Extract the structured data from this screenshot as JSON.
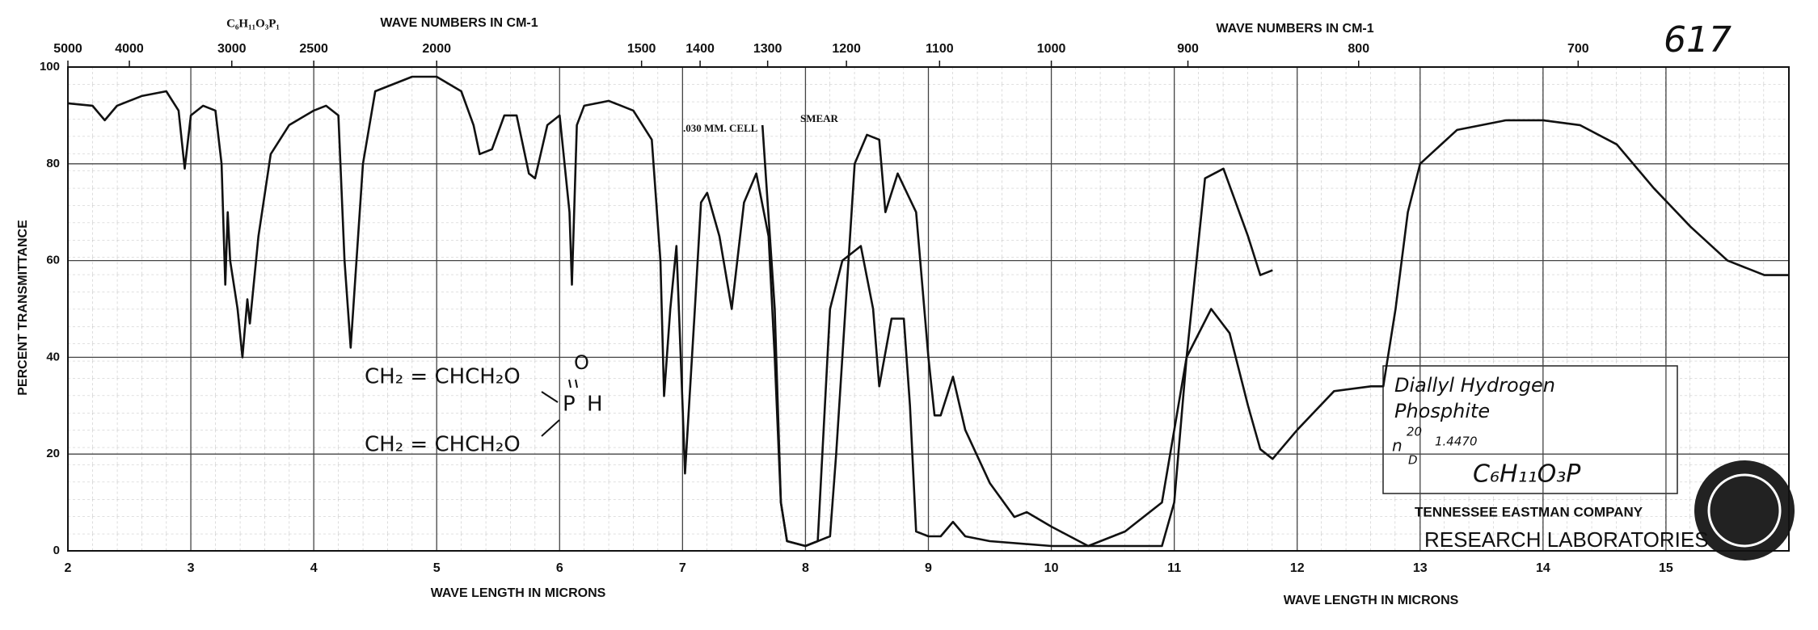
{
  "chart_data": {
    "type": "line",
    "x_label": "WAVE LENGTH IN MICRONS",
    "x2_label": "WAVE NUMBERS IN CM-1",
    "y_label": "PERCENT TRANSMITTANCE",
    "xlim": [
      2,
      16
    ],
    "xticks": [
      2,
      3,
      4,
      5,
      6,
      7,
      8,
      9,
      10,
      11,
      12,
      13,
      14,
      15
    ],
    "x2ticks": [
      5000,
      4000,
      3000,
      2500,
      2000,
      1500,
      1400,
      1300,
      1200,
      1100,
      1000,
      900,
      800,
      700
    ],
    "ylim": [
      0,
      100
    ],
    "yticks": [
      0,
      20,
      40,
      60,
      80,
      100
    ],
    "grid": true,
    "series": [
      {
        "name": ".030 MM. CELL",
        "color": "#111111",
        "x": [
          2.0,
          2.2,
          2.3,
          2.4,
          2.6,
          2.8,
          2.9,
          2.95,
          3.0,
          3.1,
          3.2,
          3.25,
          3.28,
          3.3,
          3.32,
          3.38,
          3.42,
          3.46,
          3.48,
          3.55,
          3.65,
          3.8,
          4.0,
          4.1,
          4.2,
          4.25,
          4.3,
          4.4,
          4.5,
          4.8,
          5.0,
          5.2,
          5.3,
          5.35,
          5.45,
          5.55,
          5.65,
          5.75,
          5.8,
          5.9,
          6.0,
          6.08,
          6.1,
          6.14,
          6.2,
          6.4,
          6.6,
          6.75,
          6.82,
          6.85,
          6.9,
          6.95,
          7.0,
          7.02,
          7.1,
          7.15,
          7.2,
          7.3,
          7.4,
          7.5,
          7.6,
          7.7,
          7.75,
          7.8,
          7.85,
          8.0,
          8.1,
          8.2,
          8.3,
          8.45,
          8.55,
          8.6,
          8.7,
          8.8,
          8.85,
          8.9,
          9.0,
          9.1,
          9.2,
          9.3,
          9.5,
          10.0,
          10.5,
          10.9,
          11.0,
          11.1,
          11.3,
          11.45,
          11.6,
          11.7,
          11.8,
          12.0,
          12.3,
          12.6,
          12.7,
          12.8,
          12.9,
          13.0,
          13.3,
          13.7,
          14.0,
          14.3,
          14.6,
          14.9,
          15.2,
          15.5,
          15.8,
          16.0
        ],
        "values": [
          92.5,
          92,
          89,
          92,
          94,
          95,
          91,
          79,
          90,
          92,
          91,
          80,
          55,
          70,
          60,
          50,
          40,
          52,
          47,
          65,
          82,
          88,
          91,
          92,
          90,
          60,
          42,
          80,
          95,
          98,
          98,
          95,
          88,
          82,
          83,
          90,
          90,
          78,
          77,
          88,
          90,
          70,
          55,
          88,
          92,
          93,
          91,
          85,
          60,
          32,
          50,
          63,
          30,
          16,
          50,
          72,
          74,
          65,
          50,
          72,
          78,
          65,
          40,
          10,
          2,
          1,
          2,
          50,
          60,
          63,
          50,
          34,
          48,
          48,
          30,
          4,
          3,
          3,
          6,
          3,
          2,
          1,
          1,
          1,
          10,
          40,
          50,
          45,
          30,
          21,
          19,
          25,
          33,
          34,
          34,
          50,
          70,
          80,
          87,
          89,
          89,
          88,
          84,
          75,
          67,
          60,
          57,
          57
        ]
      },
      {
        "name": "SMEAR",
        "color": "#111111",
        "x": [
          7.65,
          7.75,
          7.8,
          7.85,
          8.0,
          8.2,
          8.25,
          8.4,
          8.5,
          8.6,
          8.65,
          8.75,
          8.9,
          9.0,
          9.05,
          9.1,
          9.2,
          9.3,
          9.5,
          9.7,
          9.8,
          10.0,
          10.3,
          10.6,
          10.9,
          11.1,
          11.25,
          11.4,
          11.6,
          11.7,
          11.8
        ],
        "values": [
          88,
          50,
          10,
          2,
          1,
          3,
          20,
          80,
          86,
          85,
          70,
          78,
          70,
          40,
          28,
          28,
          36,
          25,
          14,
          7,
          8,
          5,
          1,
          4,
          10,
          40,
          77,
          79,
          65,
          57,
          58
        ]
      }
    ],
    "annotations": [
      "C₆H₁₁O₃P₁",
      "617",
      "CH₂ = CHCH₂O",
      "CH₂ = CHCH₂O",
      "P",
      "H",
      "O",
      "Diallyl Hydrogen",
      "Phosphite",
      "n",
      "20",
      "D",
      "1.4470",
      "C₆H₁₁O₃P",
      "TENNESSEE EASTMAN COMPANY",
      "RESEARCH LABORATORIES"
    ]
  }
}
